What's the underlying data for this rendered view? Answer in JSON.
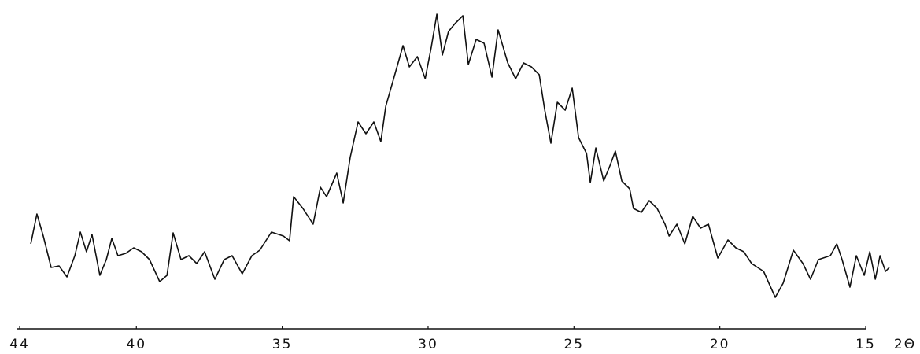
{
  "chart_data": {
    "type": "line",
    "x_label": "2Θ",
    "x": [
      43.62,
      43.41,
      43.19,
      42.92,
      42.65,
      42.38,
      42.11,
      41.92,
      41.71,
      41.52,
      41.25,
      41.03,
      40.84,
      40.63,
      40.36,
      40.09,
      39.82,
      39.55,
      39.2,
      38.95,
      38.74,
      38.47,
      38.2,
      37.93,
      37.66,
      37.31,
      36.99,
      36.72,
      36.37,
      36.04,
      35.77,
      35.37,
      34.96,
      34.75,
      34.61,
      34.29,
      33.94,
      33.69,
      33.48,
      33.13,
      32.91,
      32.67,
      32.4,
      32.13,
      31.86,
      31.62,
      31.45,
      31.18,
      30.86,
      30.64,
      30.37,
      30.1,
      29.89,
      29.7,
      29.51,
      29.3,
      29.08,
      28.81,
      28.62,
      28.35,
      28.08,
      27.81,
      27.6,
      27.27,
      27.0,
      26.73,
      26.46,
      26.19,
      26.0,
      25.79,
      25.57,
      25.3,
      25.06,
      24.84,
      24.57,
      24.44,
      24.25,
      23.98,
      23.76,
      23.58,
      23.36,
      23.09,
      22.96,
      22.69,
      22.42,
      22.15,
      21.88,
      21.74,
      21.47,
      21.2,
      20.93,
      20.66,
      20.39,
      20.07,
      19.72,
      19.45,
      19.18,
      18.91,
      18.5,
      18.1,
      17.83,
      17.48,
      17.15,
      16.89,
      16.62,
      16.21,
      15.99,
      15.81,
      15.54,
      15.32,
      15.05,
      14.86,
      14.67,
      14.51,
      14.32,
      14.19
    ],
    "values": [
      90,
      128,
      100,
      60,
      62,
      48,
      75,
      105,
      80,
      102,
      50,
      70,
      97,
      75,
      78,
      85,
      80,
      70,
      42,
      50,
      104,
      70,
      75,
      65,
      80,
      45,
      70,
      75,
      52,
      75,
      82,
      105,
      100,
      94,
      150,
      135,
      115,
      162,
      150,
      180,
      142,
      200,
      245,
      230,
      245,
      220,
      265,
      300,
      342,
      315,
      328,
      300,
      340,
      382,
      330,
      360,
      370,
      380,
      318,
      350,
      345,
      302,
      362,
      320,
      300,
      320,
      315,
      305,
      260,
      218,
      270,
      260,
      288,
      225,
      205,
      168,
      212,
      170,
      190,
      208,
      170,
      160,
      135,
      130,
      145,
      135,
      115,
      100,
      115,
      90,
      125,
      110,
      115,
      72,
      95,
      85,
      80,
      65,
      55,
      22,
      40,
      82,
      65,
      45,
      70,
      75,
      90,
      70,
      35,
      75,
      50,
      80,
      45,
      75,
      55,
      60
    ],
    "color": "#111111",
    "xlim": [
      44,
      15
    ],
    "xticks": [
      44,
      40,
      35,
      30,
      25,
      20,
      15
    ]
  }
}
